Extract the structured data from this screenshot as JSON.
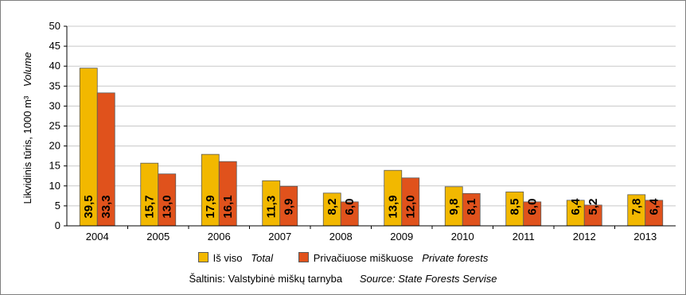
{
  "chart_data": {
    "type": "bar",
    "categories": [
      "2004",
      "2005",
      "2006",
      "2007",
      "2008",
      "2009",
      "2010",
      "2011",
      "2012",
      "2013"
    ],
    "series": [
      {
        "name": "Iš viso",
        "name_en": "Total",
        "color": "#f2b800",
        "values": [
          39.5,
          15.7,
          17.9,
          11.3,
          8.2,
          13.9,
          9.8,
          8.5,
          6.4,
          7.8
        ],
        "labels": [
          "39,5",
          "15,7",
          "17,9",
          "11,3",
          "8,2",
          "13,9",
          "9,8",
          "8,5",
          "6,4",
          "7,8"
        ]
      },
      {
        "name": "Privačiuose miškuose",
        "name_en": "Private forests",
        "color": "#e0521c",
        "values": [
          33.3,
          13.0,
          16.1,
          9.9,
          6.0,
          12.0,
          8.1,
          6.0,
          5.2,
          6.4
        ],
        "labels": [
          "33,3",
          "13,0",
          "16,1",
          "9,9",
          "6,0",
          "12,0",
          "8,1",
          "6,0",
          "5,2",
          "6,4"
        ]
      }
    ],
    "ylim": [
      0,
      50
    ],
    "yticks": [
      0,
      5,
      10,
      15,
      20,
      25,
      30,
      35,
      40,
      45,
      50
    ],
    "ylabel": "Likvidinis tūris, 1000 m³",
    "ylabel_en": "Volume",
    "grid": true,
    "legend_position": "bottom",
    "source": "Šaltinis: Valstybinė miškų tarnyba",
    "source_en": "Source: State Forests Servise"
  }
}
